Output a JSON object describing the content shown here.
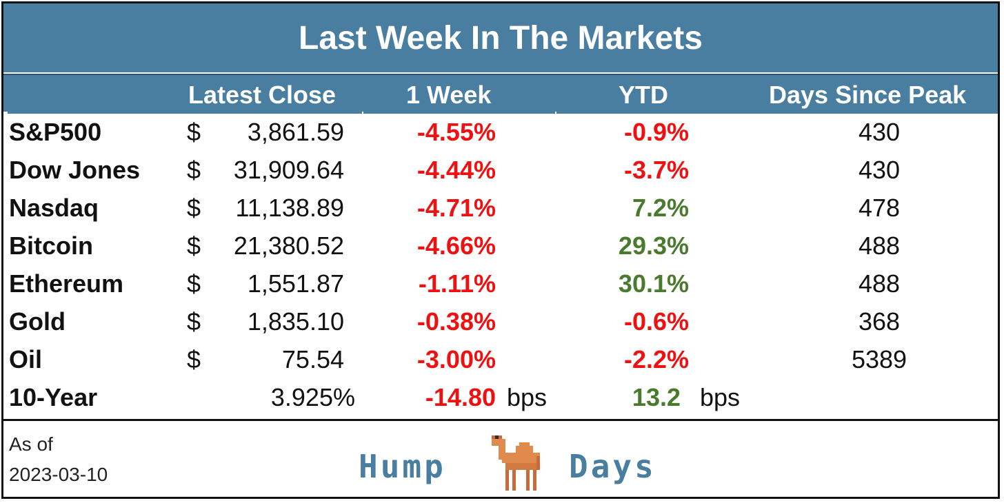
{
  "title": "Last Week In The Markets",
  "headers": {
    "latest_close": "Latest Close",
    "one_week": "1 Week",
    "ytd": "YTD",
    "days_since_peak": "Days Since Peak"
  },
  "rows": [
    {
      "name": "S&P500",
      "dollar": "$",
      "close": "3,861.59",
      "week": "-4.55%",
      "ytd": "-0.9%",
      "ytd_sign": "neg",
      "days": "430"
    },
    {
      "name": "Dow Jones",
      "dollar": "$",
      "close": "31,909.64",
      "week": "-4.44%",
      "ytd": "-3.7%",
      "ytd_sign": "neg",
      "days": "430"
    },
    {
      "name": "Nasdaq",
      "dollar": "$",
      "close": "11,138.89",
      "week": "-4.71%",
      "ytd": "7.2%",
      "ytd_sign": "pos",
      "days": "478"
    },
    {
      "name": "Bitcoin",
      "dollar": "$",
      "close": "21,380.52",
      "week": "-4.66%",
      "ytd": "29.3%",
      "ytd_sign": "pos",
      "days": "488"
    },
    {
      "name": "Ethereum",
      "dollar": "$",
      "close": "1,551.87",
      "week": "-1.11%",
      "ytd": "30.1%",
      "ytd_sign": "pos",
      "days": "488"
    },
    {
      "name": "Gold",
      "dollar": "$",
      "close": "1,835.10",
      "week": "-0.38%",
      "ytd": "-0.6%",
      "ytd_sign": "neg",
      "days": "368"
    },
    {
      "name": "Oil",
      "dollar": "$",
      "close": "75.54",
      "week": "-3.00%",
      "ytd": "-2.2%",
      "ytd_sign": "neg",
      "days": "5389"
    }
  ],
  "ten_year": {
    "name": "10-Year",
    "close": "3.925%",
    "week": "-14.80",
    "week_unit": "bps",
    "ytd": "13.2",
    "ytd_unit": "bps"
  },
  "footer": {
    "as_of_label": "As of",
    "as_of_date": "2023-03-10",
    "logo_left": "Hump",
    "logo_right": "Days",
    "logo_icon": "camel-icon"
  },
  "colors": {
    "header_bg": "#4a7ea0",
    "negative": "#ee1111",
    "positive": "#4a7a2e"
  }
}
